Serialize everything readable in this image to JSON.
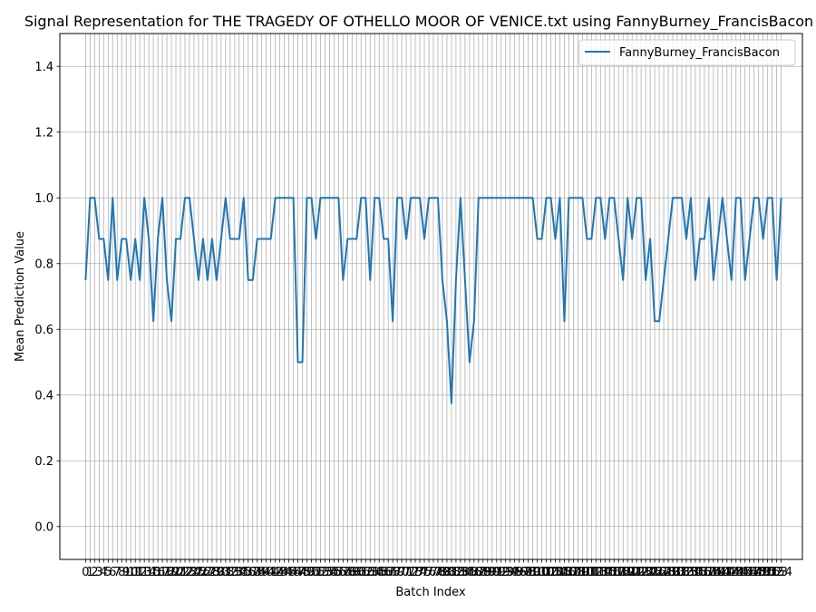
{
  "chart_data": {
    "type": "line",
    "title": "Signal Representation for THE TRAGEDY OF OTHELLO MOOR OF VENICE.txt using FannyBurney_FrancisBacon",
    "xlabel": "Batch Index",
    "ylabel": "Mean Prediction Value",
    "xlim": [
      -5.7,
      158.7
    ],
    "ylim": [
      -0.1,
      1.5
    ],
    "yticks": [
      0.0,
      0.2,
      0.4,
      0.6,
      0.8,
      1.0,
      1.2,
      1.4
    ],
    "ytick_labels": [
      "0.0",
      "0.2",
      "0.4",
      "0.6",
      "0.8",
      "1.0",
      "1.2",
      "1.4"
    ],
    "grid": true,
    "legend_position": "top-right",
    "series": [
      {
        "name": "FannyBurney_FrancisBacon",
        "color": "#1f77b4",
        "values": [
          0.75,
          1.0,
          1.0,
          0.875,
          0.875,
          0.75,
          1.0,
          0.75,
          0.875,
          0.875,
          0.75,
          0.875,
          0.75,
          1.0,
          0.875,
          0.625,
          0.875,
          1.0,
          0.75,
          0.625,
          0.875,
          0.875,
          1.0,
          1.0,
          0.875,
          0.75,
          0.875,
          0.75,
          0.875,
          0.75,
          0.875,
          1.0,
          0.875,
          0.875,
          0.875,
          1.0,
          0.75,
          0.75,
          0.875,
          0.875,
          0.875,
          0.875,
          1.0,
          1.0,
          1.0,
          1.0,
          1.0,
          0.5,
          0.5,
          1.0,
          1.0,
          0.875,
          1.0,
          1.0,
          1.0,
          1.0,
          1.0,
          0.75,
          0.875,
          0.875,
          0.875,
          1.0,
          1.0,
          0.75,
          1.0,
          1.0,
          0.875,
          0.875,
          0.625,
          1.0,
          1.0,
          0.875,
          1.0,
          1.0,
          1.0,
          0.875,
          1.0,
          1.0,
          1.0,
          0.75,
          0.625,
          0.375,
          0.75,
          1.0,
          0.75,
          0.5,
          0.625,
          1.0,
          1.0,
          1.0,
          1.0,
          1.0,
          1.0,
          1.0,
          1.0,
          1.0,
          1.0,
          1.0,
          1.0,
          1.0,
          0.875,
          0.875,
          1.0,
          1.0,
          0.875,
          1.0,
          0.625,
          1.0,
          1.0,
          1.0,
          1.0,
          0.875,
          0.875,
          1.0,
          1.0,
          0.875,
          1.0,
          1.0,
          0.875,
          0.75,
          1.0,
          0.875,
          1.0,
          1.0,
          0.75,
          0.875,
          0.625,
          0.625,
          0.75,
          0.875,
          1.0,
          1.0,
          1.0,
          0.875,
          1.0,
          0.75,
          0.875,
          0.875,
          1.0,
          0.75,
          0.875,
          1.0,
          0.875,
          0.75,
          1.0,
          1.0,
          0.75,
          0.875,
          1.0,
          1.0,
          0.875,
          1.0,
          1.0,
          0.75,
          1.0
        ]
      }
    ]
  }
}
